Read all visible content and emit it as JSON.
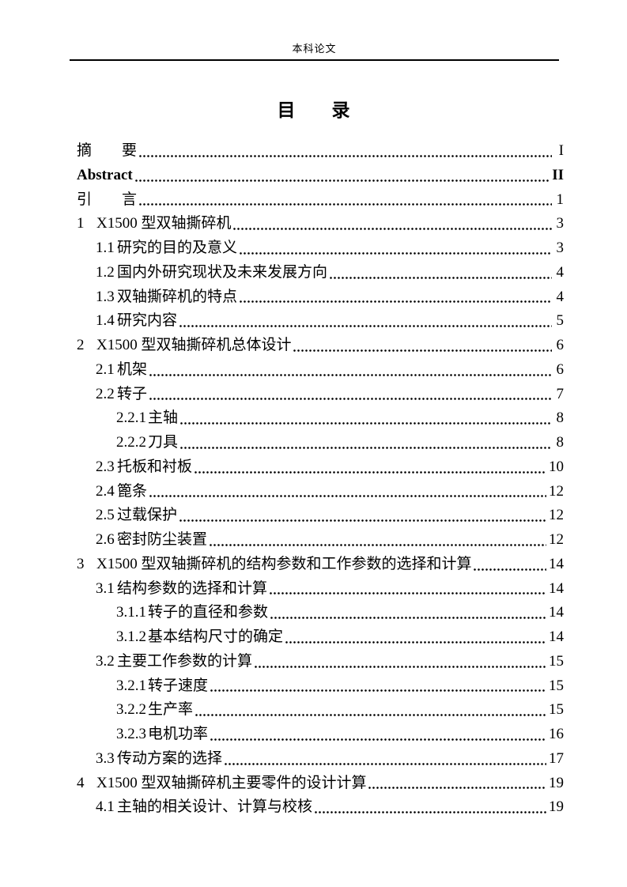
{
  "header": {
    "text": "本科论文"
  },
  "title": "目　　录",
  "toc": {
    "entries": [
      {
        "num": "",
        "label": "摘　　要",
        "page": "I",
        "level": 0,
        "bold": false
      },
      {
        "num": "",
        "label": "Abstract",
        "page": "II",
        "level": 0,
        "bold": true
      },
      {
        "num": "",
        "label": "引　　言",
        "page": "1",
        "level": 0,
        "bold": false
      },
      {
        "num": "1",
        "label": "X1500 型双轴撕碎机",
        "page": "3",
        "level": 0,
        "bold": false
      },
      {
        "num": "1.1",
        "label": "研究的目的及意义",
        "page": "3",
        "level": 1,
        "bold": false
      },
      {
        "num": "1.2",
        "label": "国内外研究现状及未来发展方向",
        "page": "4",
        "level": 1,
        "bold": false
      },
      {
        "num": "1.3",
        "label": "双轴撕碎机的特点",
        "page": "4",
        "level": 1,
        "bold": false
      },
      {
        "num": "1.4",
        "label": "研究内容",
        "page": "5",
        "level": 1,
        "bold": false
      },
      {
        "num": "2",
        "label": "X1500 型双轴撕碎机总体设计",
        "page": "6",
        "level": 0,
        "bold": false
      },
      {
        "num": "2.1",
        "label": "机架",
        "page": "6",
        "level": 1,
        "bold": false
      },
      {
        "num": "2.2",
        "label": "转子",
        "page": "7",
        "level": 1,
        "bold": false
      },
      {
        "num": "2.2.1",
        "label": "主轴",
        "page": "8",
        "level": 2,
        "bold": false
      },
      {
        "num": "2.2.2",
        "label": "刀具",
        "page": "8",
        "level": 2,
        "bold": false
      },
      {
        "num": "2.3",
        "label": "托板和衬板",
        "page": "10",
        "level": 1,
        "bold": false
      },
      {
        "num": "2.4",
        "label": "篦条",
        "page": "12",
        "level": 1,
        "bold": false
      },
      {
        "num": "2.5",
        "label": "过载保护",
        "page": "12",
        "level": 1,
        "bold": false
      },
      {
        "num": "2.6",
        "label": "密封防尘装置",
        "page": "12",
        "level": 1,
        "bold": false
      },
      {
        "num": "3",
        "label": "X1500 型双轴撕碎机的结构参数和工作参数的选择和计算",
        "page": "14",
        "level": 0,
        "bold": false
      },
      {
        "num": "3.1",
        "label": "结构参数的选择和计算",
        "page": "14",
        "level": 1,
        "bold": false
      },
      {
        "num": "3.1.1",
        "label": "转子的直径和参数",
        "page": "14",
        "level": 2,
        "bold": false
      },
      {
        "num": "3.1.2",
        "label": "基本结构尺寸的确定",
        "page": "14",
        "level": 2,
        "bold": false
      },
      {
        "num": "3.2",
        "label": "主要工作参数的计算",
        "page": "15",
        "level": 1,
        "bold": false
      },
      {
        "num": "3.2.1",
        "label": "转子速度",
        "page": "15",
        "level": 2,
        "bold": false
      },
      {
        "num": "3.2.2",
        "label": "生产率",
        "page": "15",
        "level": 2,
        "bold": false
      },
      {
        "num": "3.2.3",
        "label": "电机功率",
        "page": "16",
        "level": 2,
        "bold": false
      },
      {
        "num": "3.3",
        "label": "传动方案的选择",
        "page": "17",
        "level": 1,
        "bold": false
      },
      {
        "num": "4",
        "label": "X1500 型双轴撕碎机主要零件的设计计算",
        "page": "19",
        "level": 0,
        "bold": false
      },
      {
        "num": "4.1",
        "label": "主轴的相关设计、计算与校核",
        "page": "19",
        "level": 1,
        "bold": false
      }
    ]
  }
}
